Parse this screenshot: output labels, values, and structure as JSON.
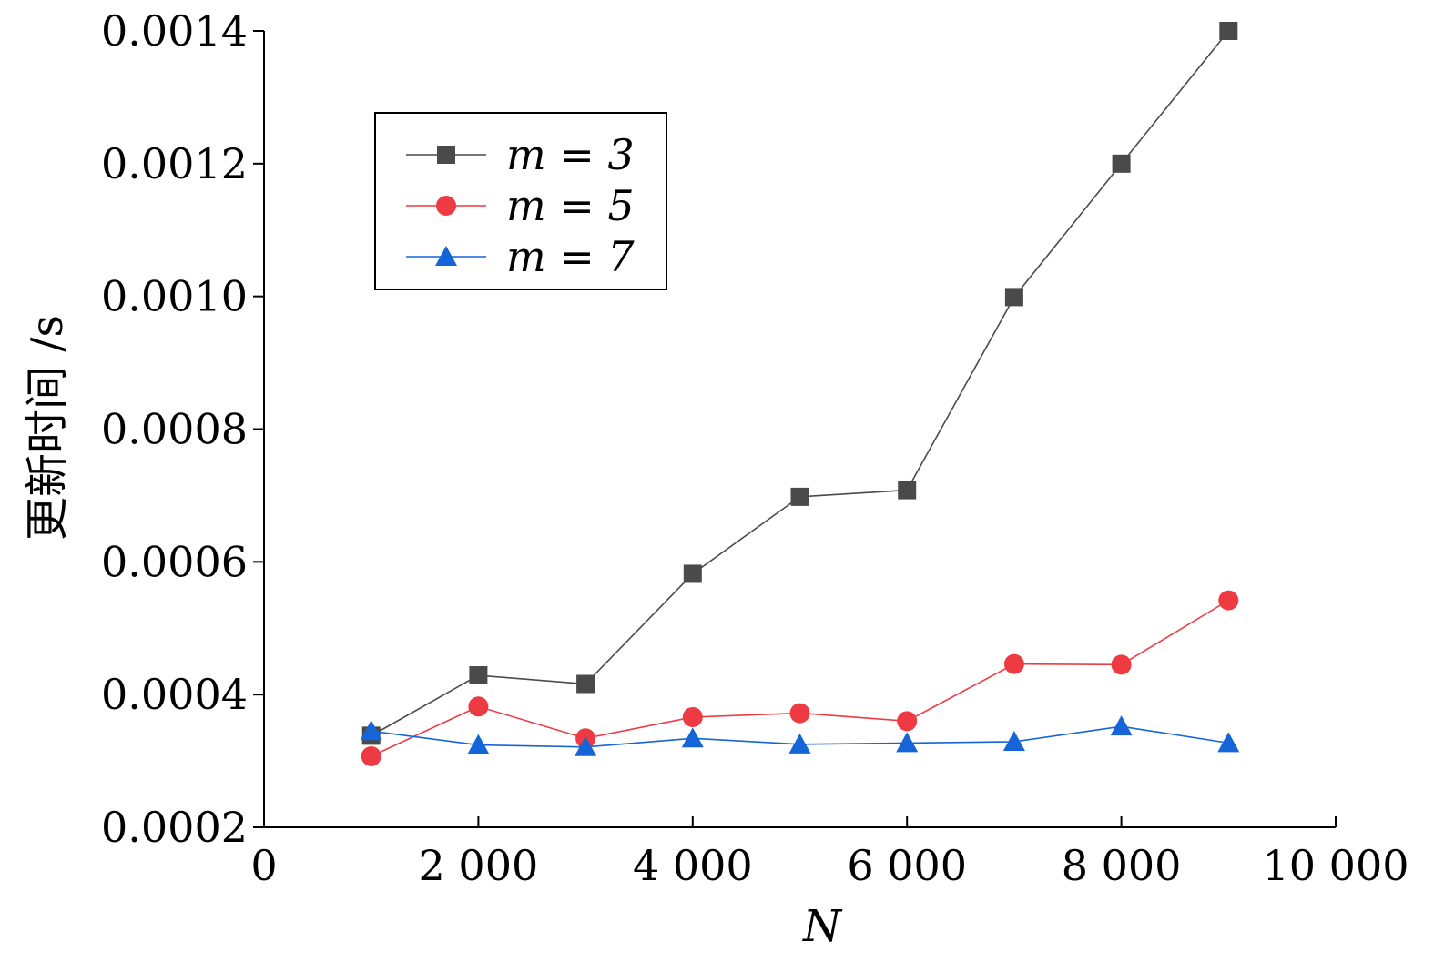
{
  "chart_data": {
    "type": "line",
    "xlabel": "N",
    "ylabel": "更新时间 /s",
    "xlim": [
      0,
      10000
    ],
    "ylim": [
      0.0002,
      0.0014
    ],
    "x_ticks": [
      0,
      2000,
      4000,
      6000,
      8000,
      10000
    ],
    "x_tick_labels": [
      "0",
      "2 000",
      "4 000",
      "6 000",
      "8 000",
      "10 000"
    ],
    "y_ticks": [
      0.0002,
      0.0004,
      0.0006,
      0.0008,
      0.001,
      0.0012,
      0.0014
    ],
    "y_tick_labels": [
      "0.0002",
      "0.0004",
      "0.0006",
      "0.0008",
      "0.0010",
      "0.0012",
      "0.0014"
    ],
    "x": [
      1000,
      2000,
      3000,
      4000,
      5000,
      6000,
      7000,
      8000,
      9000
    ],
    "grid": false,
    "legend_position": "top-left",
    "series": [
      {
        "name": "m = 3",
        "marker": "square",
        "color": "#4a4a4a",
        "values": [
          0.000338,
          0.000429,
          0.000416,
          0.000582,
          0.000698,
          0.000708,
          0.000999,
          0.0012,
          0.0014
        ]
      },
      {
        "name": "m = 5",
        "marker": "circle",
        "color": "#ee3a43",
        "values": [
          0.000307,
          0.000382,
          0.000334,
          0.000366,
          0.000372,
          0.00036,
          0.000446,
          0.000445,
          0.000542
        ]
      },
      {
        "name": "m = 7",
        "marker": "triangle",
        "color": "#1565d8",
        "values": [
          0.000345,
          0.000324,
          0.000321,
          0.000334,
          0.000325,
          0.000327,
          0.000329,
          0.000352,
          0.000327
        ]
      }
    ]
  }
}
